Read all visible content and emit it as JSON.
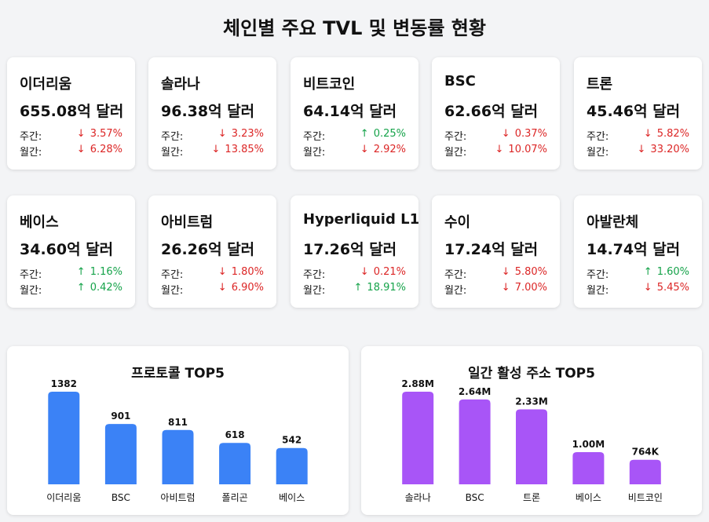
{
  "page": {
    "title": "체인별 주요 TVL 및 변동률 현황"
  },
  "labels": {
    "weekly": "주간:",
    "monthly": "월간:"
  },
  "chains": [
    {
      "name": "이더리움",
      "tvl": "655.08억 달러",
      "weekly": {
        "dir": "down",
        "value": "3.57%"
      },
      "monthly": {
        "dir": "down",
        "value": "6.28%"
      }
    },
    {
      "name": "솔라나",
      "tvl": "96.38억 달러",
      "weekly": {
        "dir": "down",
        "value": "3.23%"
      },
      "monthly": {
        "dir": "down",
        "value": "13.85%"
      }
    },
    {
      "name": "비트코인",
      "tvl": "64.14억 달러",
      "weekly": {
        "dir": "up",
        "value": "0.25%"
      },
      "monthly": {
        "dir": "down",
        "value": "2.92%"
      }
    },
    {
      "name": "BSC",
      "tvl": "62.66억 달러",
      "weekly": {
        "dir": "down",
        "value": "0.37%"
      },
      "monthly": {
        "dir": "down",
        "value": "10.07%"
      }
    },
    {
      "name": "트론",
      "tvl": "45.46억 달러",
      "weekly": {
        "dir": "down",
        "value": "5.82%"
      },
      "monthly": {
        "dir": "down",
        "value": "33.20%"
      }
    },
    {
      "name": "베이스",
      "tvl": "34.60억 달러",
      "weekly": {
        "dir": "up",
        "value": "1.16%"
      },
      "monthly": {
        "dir": "up",
        "value": "0.42%"
      }
    },
    {
      "name": "아비트럼",
      "tvl": "26.26억 달러",
      "weekly": {
        "dir": "down",
        "value": "1.80%"
      },
      "monthly": {
        "dir": "down",
        "value": "6.90%"
      }
    },
    {
      "name": "Hyperliquid L1",
      "tvl": "17.26억 달러",
      "weekly": {
        "dir": "down",
        "value": "0.21%"
      },
      "monthly": {
        "dir": "up",
        "value": "18.91%"
      }
    },
    {
      "name": "수이",
      "tvl": "17.24억 달러",
      "weekly": {
        "dir": "down",
        "value": "5.80%"
      },
      "monthly": {
        "dir": "down",
        "value": "7.00%"
      }
    },
    {
      "name": "아발란체",
      "tvl": "14.74억 달러",
      "weekly": {
        "dir": "up",
        "value": "1.60%"
      },
      "monthly": {
        "dir": "down",
        "value": "5.45%"
      }
    }
  ],
  "arrows": {
    "up": "↑",
    "down": "↓"
  },
  "colors": {
    "up": "#16a34a",
    "down": "#dc2626",
    "protocol_bar": "#3b82f6",
    "address_bar": "#a855f7"
  },
  "chart_data": [
    {
      "type": "bar",
      "title": "프로토콜 TOP5",
      "categories": [
        "이더리움",
        "BSC",
        "아비트럼",
        "폴리곤",
        "베이스"
      ],
      "values": [
        1382,
        901,
        811,
        618,
        542
      ],
      "value_labels": [
        "1382",
        "901",
        "811",
        "618",
        "542"
      ],
      "color": "#3b82f6"
    },
    {
      "type": "bar",
      "title": "일간 활성 주소 TOP5",
      "categories": [
        "솔라나",
        "BSC",
        "트론",
        "베이스",
        "비트코인"
      ],
      "values": [
        2880000,
        2640000,
        2330000,
        1000000,
        764000
      ],
      "value_labels": [
        "2.88M",
        "2.64M",
        "2.33M",
        "1.00M",
        "764K"
      ],
      "color": "#a855f7"
    }
  ]
}
